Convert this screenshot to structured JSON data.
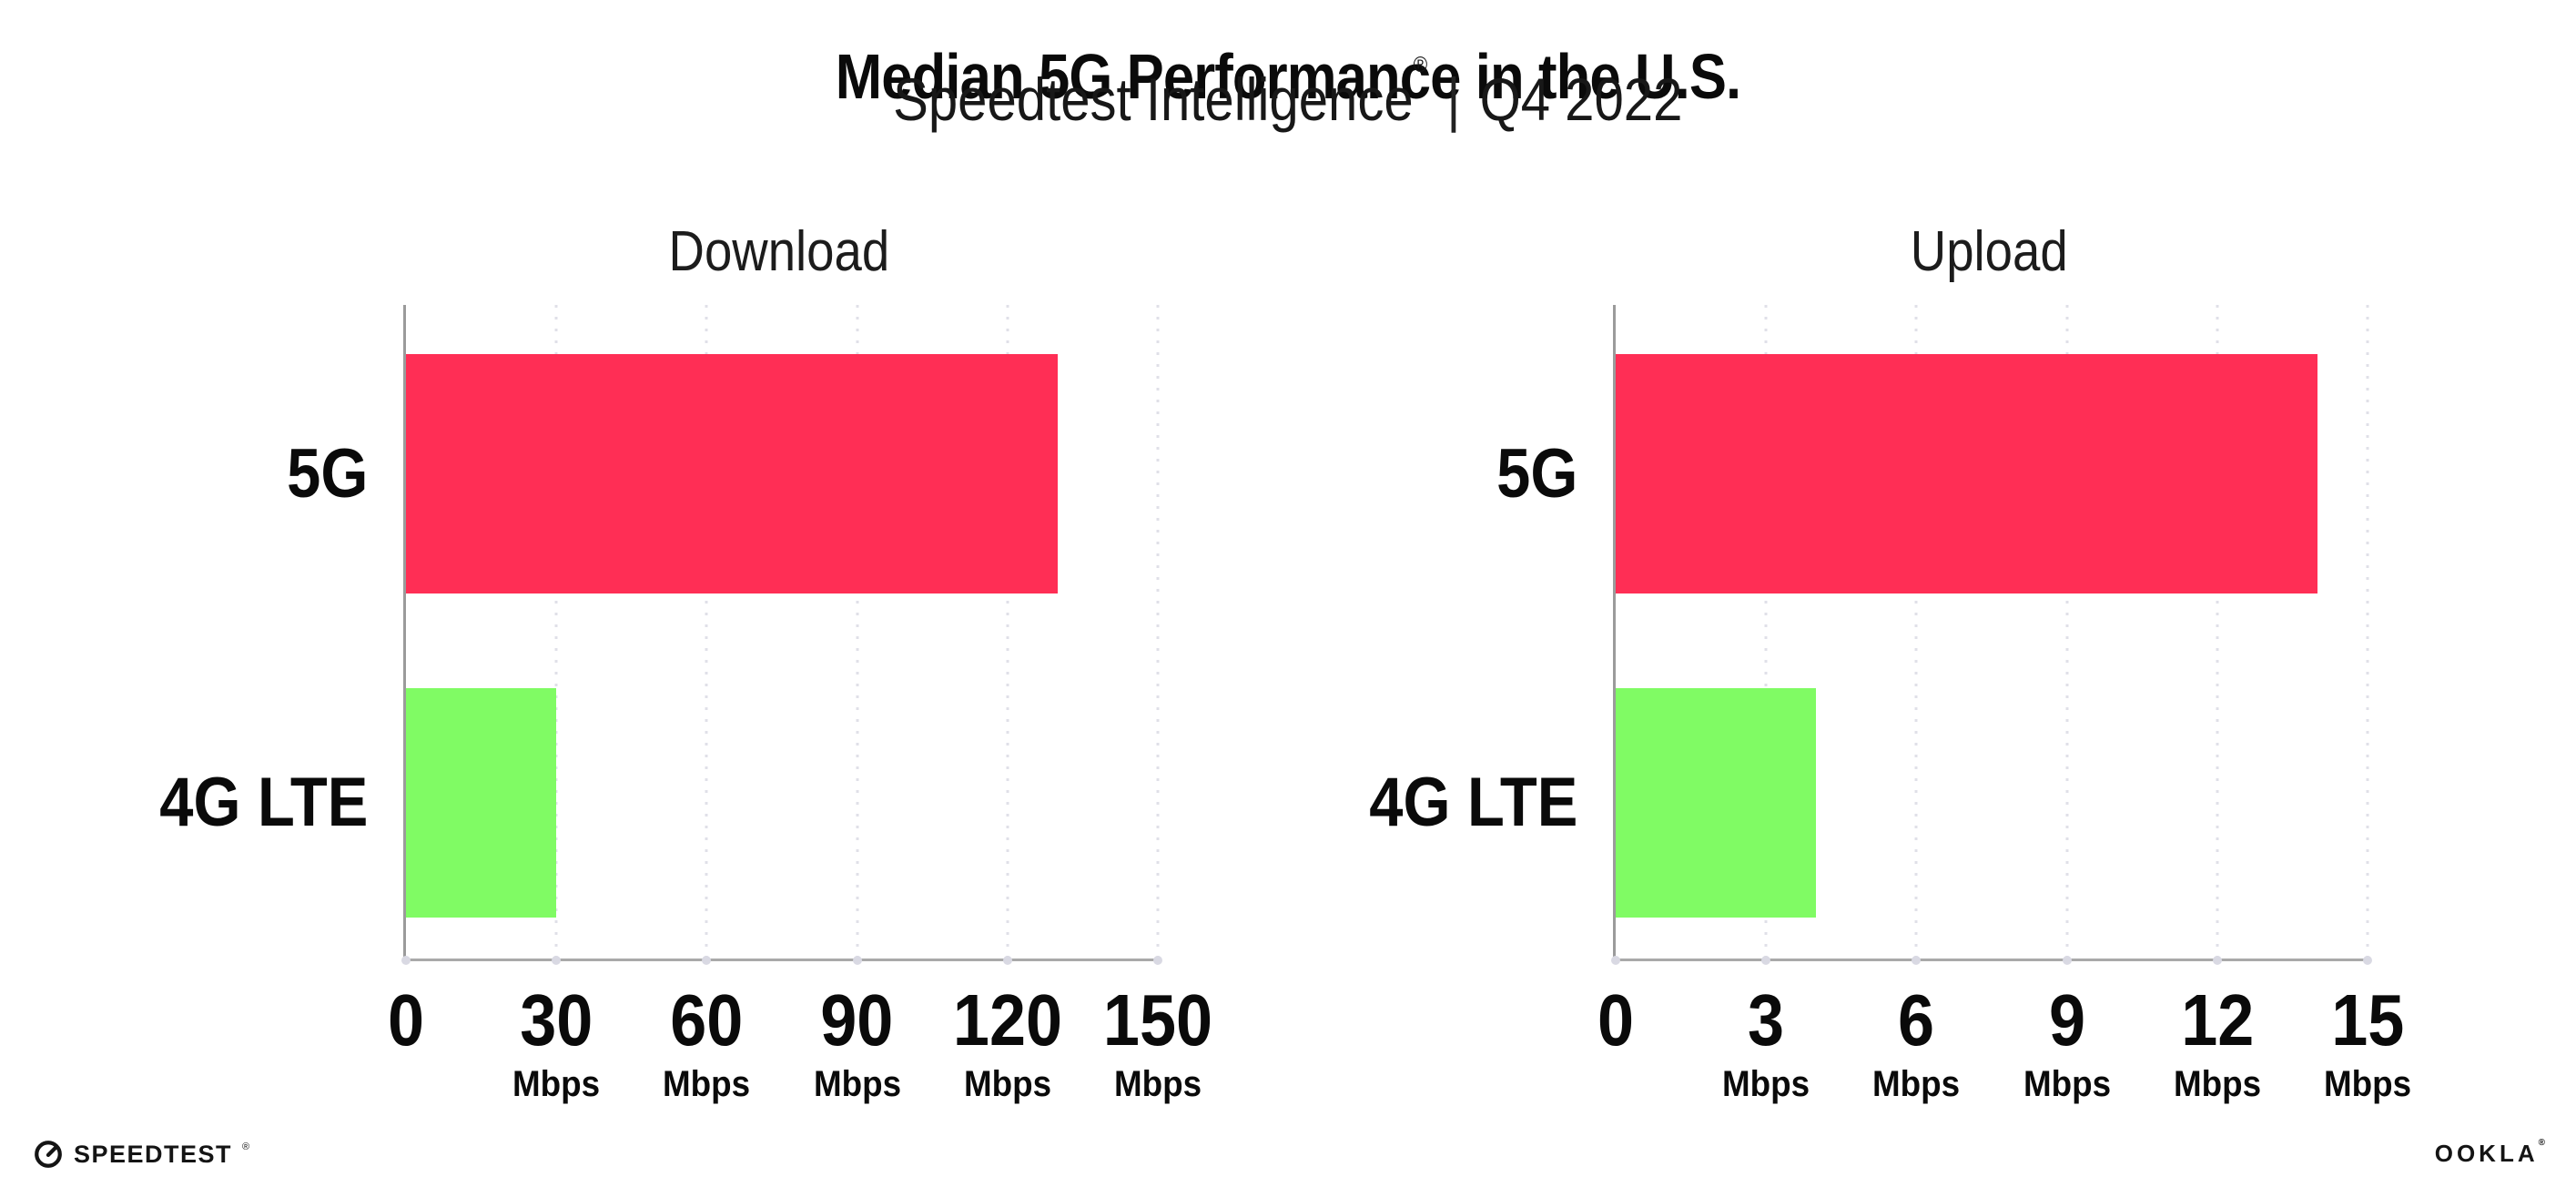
{
  "header": {
    "title": "Median 5G Performance in the U.S.",
    "subtitle_brand": "Speedtest Intelligence",
    "subtitle_reg": "®",
    "subtitle_sep": "|",
    "subtitle_period": "Q4 2022"
  },
  "chart_data": [
    {
      "type": "bar",
      "orientation": "horizontal",
      "title": "Download",
      "categories": [
        "5G",
        "4G LTE"
      ],
      "values": [
        130,
        30
      ],
      "unit": "Mbps",
      "xlim": [
        0,
        150
      ],
      "xticks": [
        0,
        30,
        60,
        90,
        120,
        150
      ],
      "grid": "dotted-vertical",
      "legend": "none",
      "bar_colors": [
        "#FF2E55",
        "#80FB64"
      ]
    },
    {
      "type": "bar",
      "orientation": "horizontal",
      "title": "Upload",
      "categories": [
        "5G",
        "4G LTE"
      ],
      "values": [
        14,
        4
      ],
      "unit": "Mbps",
      "xlim": [
        0,
        15
      ],
      "xticks": [
        0,
        3,
        6,
        9,
        12,
        15
      ],
      "grid": "dotted-vertical",
      "legend": "none",
      "bar_colors": [
        "#FF2E55",
        "#80FB64"
      ]
    }
  ],
  "colors": {
    "bar_5g": "#FF2E55",
    "bar_4g_lte": "#80FB64",
    "y_axis": "#9b9b9b",
    "x_axis": "#a9a9a9",
    "gridline": "#e0e0e8",
    "text": "#0b0b0b",
    "background": "#ffffff"
  },
  "footer": {
    "speedtest_label": "SPEEDTEST",
    "speedtest_reg": "®",
    "ookla_label": "OOKLA",
    "ookla_reg": "®"
  }
}
